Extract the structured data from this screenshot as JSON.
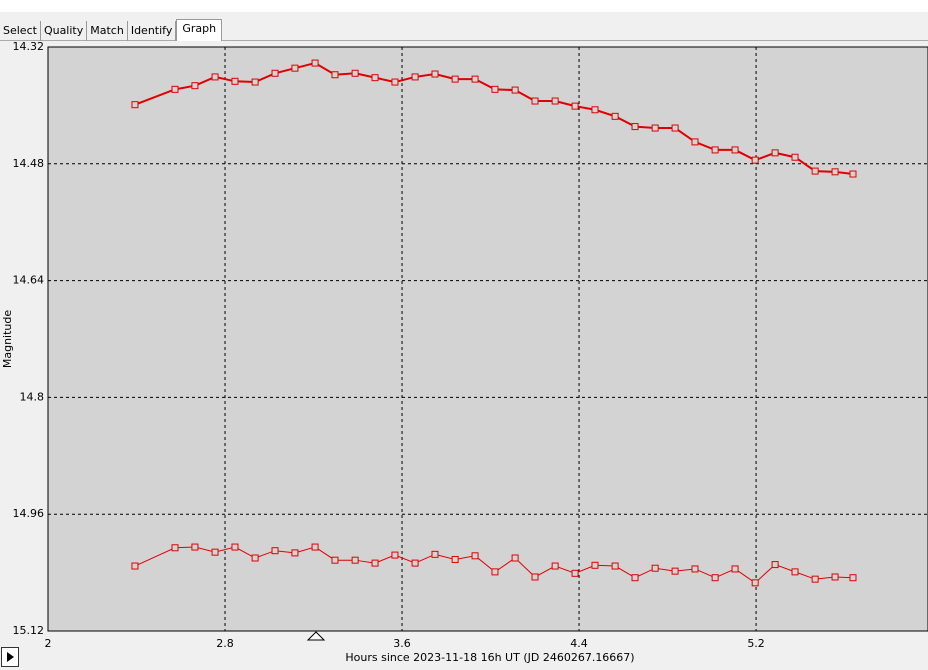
{
  "tabs": [
    "Select",
    "Quality",
    "Match",
    "Identify",
    "Graph"
  ],
  "chart_data": {
    "type": "line",
    "x_label": "Hours since 2023-11-18 16h UT (JD 2460267.16667)",
    "y_label": "Magnitude",
    "x": [
      2.393,
      2.574,
      2.664,
      2.755,
      2.845,
      2.936,
      3.026,
      3.116,
      3.207,
      3.297,
      3.388,
      3.478,
      3.568,
      3.659,
      3.749,
      3.84,
      3.93,
      4.02,
      4.111,
      4.201,
      4.292,
      4.382,
      4.472,
      4.563,
      4.653,
      4.744,
      4.834,
      4.924,
      5.015,
      5.105,
      5.196,
      5.286,
      5.376,
      5.467,
      5.557,
      5.638
    ],
    "series": [
      {
        "color": "#e00000",
        "values": [
          14.399,
          14.378,
          14.373,
          14.361,
          14.367,
          14.368,
          14.356,
          14.349,
          14.342,
          14.358,
          14.356,
          14.362,
          14.368,
          14.361,
          14.357,
          14.364,
          14.364,
          14.378,
          14.379,
          14.394,
          14.394,
          14.401,
          14.406,
          14.415,
          14.429,
          14.431,
          14.431,
          14.45,
          14.461,
          14.461,
          14.475,
          14.465,
          14.471,
          14.49,
          14.491,
          14.494
        ]
      },
      {
        "color": "#e00000",
        "values": [
          15.031,
          15.006,
          15.005,
          15.012,
          15.005,
          15.02,
          15.01,
          15.013,
          15.005,
          15.023,
          15.023,
          15.027,
          15.016,
          15.027,
          15.015,
          15.022,
          15.017,
          15.039,
          15.02,
          15.046,
          15.031,
          15.041,
          15.03,
          15.031,
          15.047,
          15.034,
          15.038,
          15.035,
          15.047,
          15.035,
          15.054,
          15.029,
          15.039,
          15.049,
          15.046,
          15.047
        ]
      }
    ],
    "xlim": [
      2,
      5.977
    ],
    "xticks": [
      2,
      2.8,
      3.6,
      4.4,
      5.2
    ],
    "ylim": [
      14.32,
      15.12
    ],
    "yticks": [
      14.32,
      14.48,
      14.64,
      14.8,
      14.96,
      15.12
    ],
    "y_inverted": true,
    "grid": true
  }
}
